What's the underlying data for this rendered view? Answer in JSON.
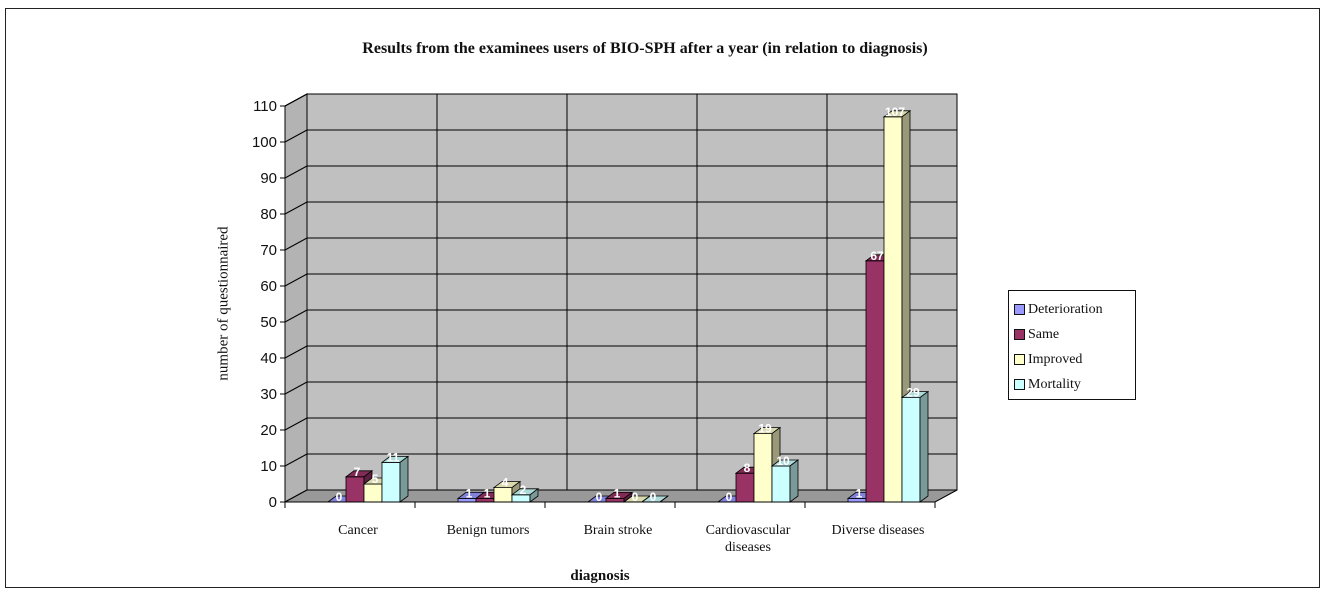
{
  "colors": {
    "Deterioration": "#9999ff",
    "Same": "#993366",
    "Improved": "#ffffcc",
    "Mortality": "#ccffff",
    "plot_area": "#c0c0c0",
    "floor": "#999999",
    "grid": "#000000"
  },
  "chart_data": {
    "type": "bar",
    "title": "Results from the examinees users of BIO-SPH after a year (in relation to diagnosis)",
    "xlabel": "diagnosis",
    "ylabel": "number of questionnaired",
    "categories": [
      [
        "Cancer"
      ],
      [
        "Benign tumors"
      ],
      [
        "Brain stroke"
      ],
      [
        "Cardiovascular",
        "diseases"
      ],
      [
        "Diverse diseases"
      ]
    ],
    "series": [
      {
        "name": "Deterioration",
        "values": [
          0,
          1,
          0,
          0,
          1
        ]
      },
      {
        "name": "Same",
        "values": [
          7,
          1,
          1,
          8,
          67
        ]
      },
      {
        "name": "Improved",
        "values": [
          5,
          4,
          0,
          19,
          107
        ]
      },
      {
        "name": "Mortality",
        "values": [
          11,
          2,
          0,
          10,
          29
        ]
      }
    ],
    "ylim": [
      0,
      110
    ],
    "yticks": [
      0,
      10,
      20,
      30,
      40,
      50,
      60,
      70,
      80,
      90,
      100,
      110
    ],
    "grid": true,
    "legend_position": "right"
  }
}
